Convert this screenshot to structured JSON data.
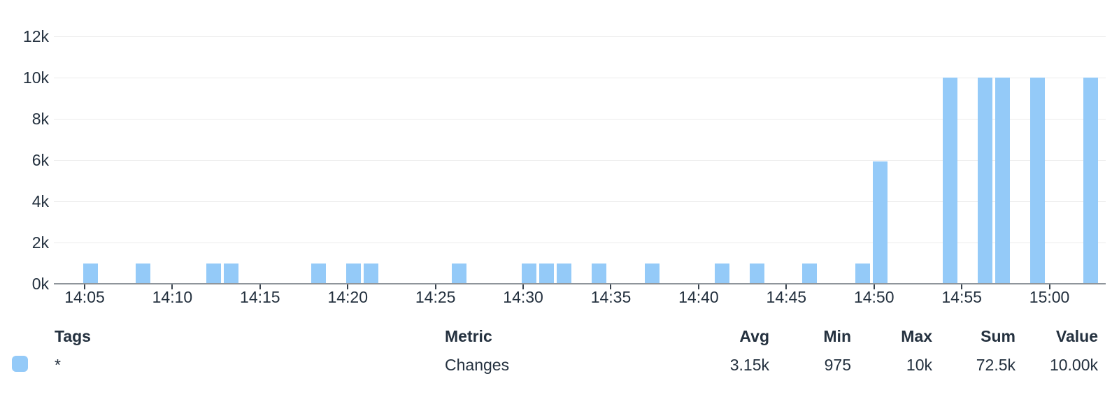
{
  "chart_data": {
    "type": "bar",
    "title": "",
    "xlabel": "",
    "ylabel": "",
    "series_name": "Changes",
    "x": [
      "14:05",
      "14:08",
      "14:12",
      "14:13",
      "14:18",
      "14:20",
      "14:21",
      "14:26",
      "14:30",
      "14:31",
      "14:32",
      "14:34",
      "14:37",
      "14:41",
      "14:43",
      "14:46",
      "14:49",
      "14:50",
      "14:54",
      "14:56",
      "14:57",
      "14:59",
      "15:02"
    ],
    "values": [
      975,
      975,
      975,
      975,
      975,
      975,
      975,
      975,
      975,
      975,
      975,
      975,
      975,
      975,
      975,
      975,
      975,
      5925,
      10000,
      10000,
      10000,
      10000,
      10000
    ],
    "x_tick_labels": [
      "14:05",
      "14:10",
      "14:15",
      "14:20",
      "14:25",
      "14:30",
      "14:35",
      "14:40",
      "14:45",
      "14:50",
      "14:55",
      "15:00"
    ],
    "y_tick_labels": [
      "0k",
      "2k",
      "4k",
      "6k",
      "8k",
      "10k",
      "12k"
    ],
    "ylim": [
      0,
      12000
    ],
    "x_window": [
      "14:03",
      "15:03"
    ],
    "grid": true,
    "legend_position": "bottom-table"
  },
  "legend": {
    "headers": {
      "tags": "Tags",
      "metric": "Metric",
      "avg": "Avg",
      "min": "Min",
      "max": "Max",
      "sum": "Sum",
      "value": "Value"
    },
    "rows": [
      {
        "tags": "*",
        "metric": "Changes",
        "avg": "3.15k",
        "min": "975",
        "max": "10k",
        "sum": "72.5k",
        "value": "10.00k",
        "color": "#94CAF8",
        "swatch_icon": "series-color-swatch-icon"
      }
    ]
  },
  "colors": {
    "bar": "#94CAF8",
    "grid": "#ECECEC",
    "axis": "#8F959B",
    "tick_mark": "#39434E",
    "text": "#24313F",
    "background": "#FFFFFF"
  }
}
